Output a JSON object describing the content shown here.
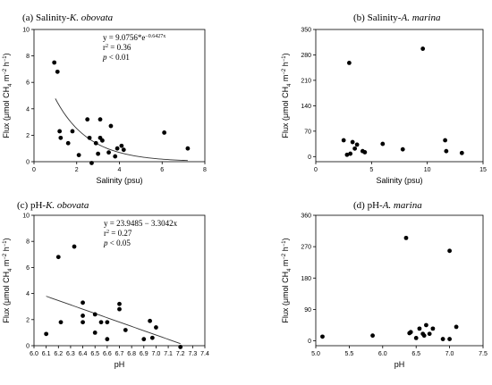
{
  "chart_data": [
    {
      "type": "scatter",
      "panel_label": "(a)",
      "title_prefix": "Salinity-",
      "title_species": "K. obovata",
      "xlabel": "Salinity (psu)",
      "ylabel_parts": [
        "Flux (μmol CH",
        "4",
        " m",
        "−2",
        " h",
        "−1",
        ")"
      ],
      "xlim": [
        0,
        8
      ],
      "ylim": [
        0,
        10
      ],
      "xticks": [
        0,
        2,
        4,
        6,
        8
      ],
      "yticks": [
        0,
        2,
        4,
        6,
        8,
        10
      ],
      "annotations": [
        {
          "pre": "y = 9.0756*e",
          "sup": "−0.6427x"
        },
        {
          "pre": "r",
          "sup": "2",
          "post": " = 0.36"
        },
        {
          "italic": "p",
          "post": " < 0.01"
        }
      ],
      "fit": {
        "type": "exp",
        "a": 9.0756,
        "b": -0.6427,
        "x_range": [
          1.0,
          7.2
        ]
      },
      "x": [
        0.95,
        1.1,
        1.2,
        1.25,
        1.6,
        1.8,
        2.1,
        2.5,
        2.6,
        2.7,
        2.9,
        3.0,
        3.1,
        3.1,
        3.2,
        3.5,
        3.6,
        3.8,
        3.9,
        4.1,
        4.2,
        6.1,
        7.2
      ],
      "y": [
        7.5,
        6.8,
        2.3,
        1.8,
        1.4,
        2.3,
        0.5,
        3.2,
        1.8,
        -0.1,
        1.4,
        0.6,
        3.2,
        1.8,
        1.6,
        0.7,
        2.7,
        0.4,
        1.0,
        1.2,
        0.9,
        2.2,
        1.0
      ]
    },
    {
      "type": "scatter",
      "panel_label": "(b)",
      "title_prefix": "Salinity-",
      "title_species": "A. marina",
      "xlabel": "Salinity (psu)",
      "ylabel_parts": [
        "Flux (μmol CH",
        "4",
        " m",
        "−2",
        " h",
        "−1",
        ")"
      ],
      "xlim": [
        0,
        15
      ],
      "ylim": [
        -14,
        350
      ],
      "xticks": [
        0,
        5,
        10,
        15
      ],
      "yticks": [
        0,
        70,
        140,
        210,
        280,
        350
      ],
      "x": [
        2.5,
        2.8,
        3.0,
        3.1,
        3.3,
        3.5,
        3.7,
        4.2,
        4.4,
        6.0,
        7.8,
        9.6,
        11.6,
        11.7,
        13.1
      ],
      "y": [
        45,
        5,
        258,
        8,
        40,
        22,
        33,
        15,
        12,
        35,
        20,
        297,
        45,
        15,
        10
      ]
    },
    {
      "type": "scatter",
      "panel_label": "(c)",
      "title_prefix": "pH-",
      "title_species": "K. obovata",
      "xlabel": "pH",
      "ylabel_parts": [
        "Flux (μmol CH",
        "4",
        " m",
        "−2",
        " h",
        "−1",
        ")"
      ],
      "xlim": [
        6.0,
        7.4
      ],
      "ylim": [
        0,
        10
      ],
      "xticks": [
        "6.0",
        "6.1",
        "6.2",
        "6.3",
        "6.4",
        "6.5",
        "6.6",
        "6.7",
        "6.8",
        "6.9",
        "7.0",
        "7.1",
        "7.2",
        "7.3",
        "7.4"
      ],
      "yticks": [
        0,
        2,
        4,
        6,
        8,
        10
      ],
      "annotations": [
        {
          "pre": "y = 23.9485 − 3.3042x"
        },
        {
          "pre": "r",
          "sup": "2",
          "post": " = 0.27"
        },
        {
          "italic": "p",
          "post": " < 0.05"
        }
      ],
      "fit": {
        "type": "linear",
        "a": 23.9485,
        "b": -3.3042,
        "x_range": [
          6.1,
          7.2
        ]
      },
      "x": [
        6.1,
        6.2,
        6.22,
        6.33,
        6.4,
        6.4,
        6.4,
        6.5,
        6.5,
        6.55,
        6.6,
        6.6,
        6.7,
        6.7,
        6.75,
        6.9,
        6.95,
        6.97,
        7.0,
        7.2
      ],
      "y": [
        0.9,
        6.8,
        1.8,
        7.6,
        3.3,
        2.3,
        1.8,
        2.4,
        1.0,
        1.8,
        1.8,
        0.5,
        3.2,
        2.8,
        1.2,
        0.5,
        1.9,
        0.6,
        1.4,
        -0.1
      ]
    },
    {
      "type": "scatter",
      "panel_label": "(d)",
      "title_prefix": "pH-",
      "title_species": "A. marina",
      "xlabel": "pH",
      "ylabel_parts": [
        "Flux (μmol CH",
        "4",
        " m",
        "−2",
        " h",
        "−1",
        ")"
      ],
      "xlim": [
        5.0,
        7.5
      ],
      "ylim": [
        -14,
        360
      ],
      "xticks": [
        "5.0",
        "5.5",
        "6.0",
        "6.5",
        "7.0",
        "7.5"
      ],
      "yticks": [
        0,
        90,
        180,
        270,
        360
      ],
      "x": [
        5.1,
        5.85,
        6.35,
        6.4,
        6.42,
        6.5,
        6.55,
        6.6,
        6.62,
        6.65,
        6.7,
        6.75,
        6.9,
        7.0,
        7.0,
        7.1
      ],
      "y": [
        12,
        15,
        295,
        22,
        25,
        8,
        35,
        20,
        15,
        45,
        20,
        35,
        5,
        5,
        258,
        40
      ]
    }
  ]
}
